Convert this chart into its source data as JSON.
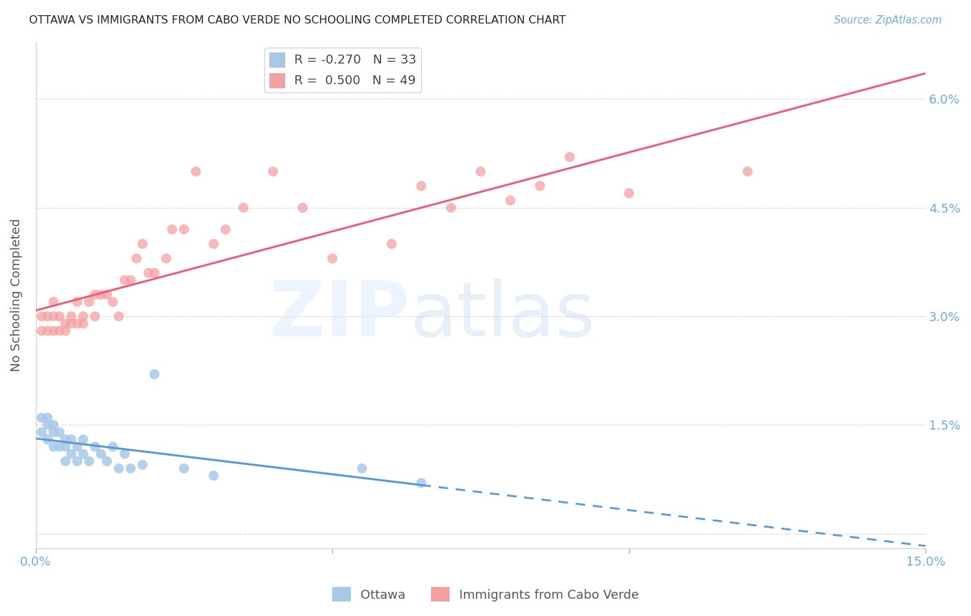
{
  "title": "OTTAWA VS IMMIGRANTS FROM CABO VERDE NO SCHOOLING COMPLETED CORRELATION CHART",
  "source": "Source: ZipAtlas.com",
  "ylabel": "No Schooling Completed",
  "xlim": [
    0.0,
    0.15
  ],
  "ylim": [
    -0.002,
    0.068
  ],
  "ytick_vals": [
    0.0,
    0.015,
    0.03,
    0.045,
    0.06
  ],
  "ytick_labels": [
    "",
    "1.5%",
    "3.0%",
    "4.5%",
    "6.0%"
  ],
  "xtick_vals": [
    0.0,
    0.05,
    0.1,
    0.15
  ],
  "xtick_labels": [
    "0.0%",
    "",
    "",
    "15.0%"
  ],
  "legend_top": [
    {
      "label": "R = -0.270   N = 33",
      "color": "#a8c8e8"
    },
    {
      "label": "R =  0.500   N = 49",
      "color": "#f4a0a0"
    }
  ],
  "legend_label_ottawa": "Ottawa",
  "legend_label_immigrants": "Immigrants from Cabo Verde",
  "ottawa_color": "#a8c8e8",
  "immigrants_color": "#f4a0a0",
  "trendline_ottawa_color": "#5b9bd5",
  "trendline_immigrants_color": "#e8607a",
  "background_color": "#ffffff",
  "grid_color": "#d0d0d0",
  "title_color": "#222222",
  "axis_label_color": "#555555",
  "tick_label_color": "#6aacdc",
  "ottawa_R": -0.27,
  "immigrants_R": 0.5,
  "ottawa_x": [
    0.001,
    0.001,
    0.002,
    0.002,
    0.002,
    0.003,
    0.003,
    0.003,
    0.004,
    0.004,
    0.005,
    0.005,
    0.005,
    0.006,
    0.006,
    0.007,
    0.007,
    0.008,
    0.008,
    0.009,
    0.01,
    0.011,
    0.012,
    0.013,
    0.014,
    0.015,
    0.016,
    0.018,
    0.02,
    0.025,
    0.03,
    0.055,
    0.065
  ],
  "ottawa_y": [
    0.016,
    0.014,
    0.016,
    0.015,
    0.013,
    0.015,
    0.014,
    0.012,
    0.014,
    0.012,
    0.013,
    0.012,
    0.01,
    0.013,
    0.011,
    0.012,
    0.01,
    0.013,
    0.011,
    0.01,
    0.012,
    0.011,
    0.01,
    0.012,
    0.009,
    0.011,
    0.009,
    0.0095,
    0.022,
    0.009,
    0.008,
    0.009,
    0.007
  ],
  "immigrants_x": [
    0.001,
    0.001,
    0.002,
    0.002,
    0.003,
    0.003,
    0.003,
    0.004,
    0.004,
    0.005,
    0.005,
    0.006,
    0.006,
    0.007,
    0.007,
    0.008,
    0.008,
    0.009,
    0.01,
    0.01,
    0.011,
    0.012,
    0.013,
    0.014,
    0.015,
    0.016,
    0.017,
    0.018,
    0.019,
    0.02,
    0.022,
    0.023,
    0.025,
    0.027,
    0.03,
    0.032,
    0.035,
    0.04,
    0.045,
    0.05,
    0.06,
    0.065,
    0.07,
    0.075,
    0.08,
    0.085,
    0.09,
    0.1,
    0.12
  ],
  "immigrants_y": [
    0.03,
    0.028,
    0.03,
    0.028,
    0.032,
    0.03,
    0.028,
    0.028,
    0.03,
    0.029,
    0.028,
    0.029,
    0.03,
    0.029,
    0.032,
    0.029,
    0.03,
    0.032,
    0.033,
    0.03,
    0.033,
    0.033,
    0.032,
    0.03,
    0.035,
    0.035,
    0.038,
    0.04,
    0.036,
    0.036,
    0.038,
    0.042,
    0.042,
    0.05,
    0.04,
    0.042,
    0.045,
    0.05,
    0.045,
    0.038,
    0.04,
    0.048,
    0.045,
    0.05,
    0.046,
    0.048,
    0.052,
    0.047,
    0.05
  ]
}
